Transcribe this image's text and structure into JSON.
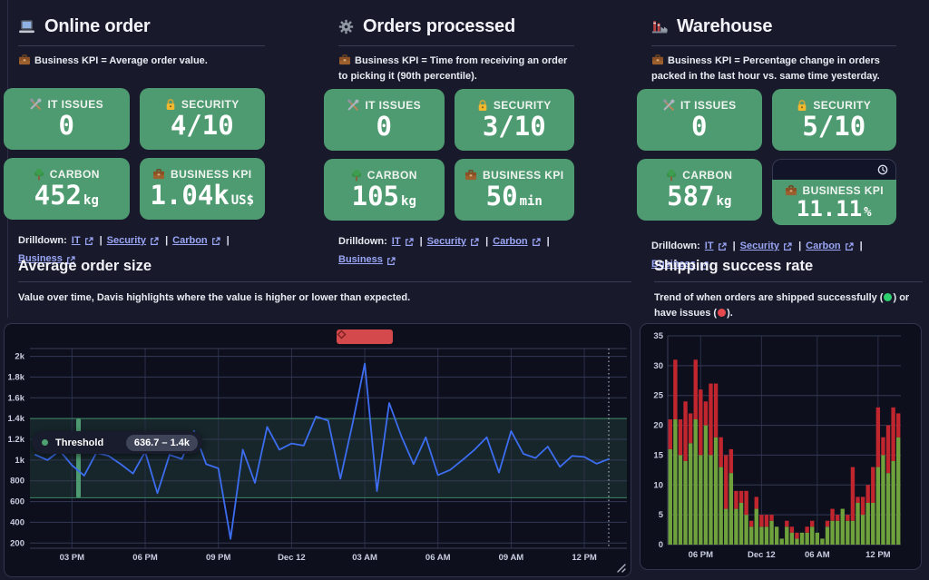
{
  "colors": {
    "background": "#181a2b",
    "tile_green": "#4f9b71",
    "line_blue": "#3d6df0",
    "bar_green": "#6fa23c",
    "bar_red": "#c1262f",
    "marker_red": "#d4494b",
    "link": "#9aa5f5",
    "status_green_dot": "#2ed06e",
    "status_red_dot": "#e5484d",
    "threshold_band": "rgba(74,160,116,0.16)",
    "threshold_edge": "#3e8764"
  },
  "sections": [
    {
      "id": "online-order",
      "icon": "laptop-icon",
      "title": "Online order",
      "note_icon": "briefcase-icon",
      "note": "Business KPI = Average order value.",
      "tiles": [
        {
          "icon": "tools-icon",
          "label": "IT ISSUES",
          "value": "0",
          "unit": ""
        },
        {
          "icon": "lock-icon",
          "label": "SECURITY",
          "value": "4/10",
          "unit": ""
        },
        {
          "icon": "tree-icon",
          "label": "CARBON",
          "value": "452",
          "unit": "kg"
        },
        {
          "icon": "briefcase-icon",
          "label": "BUSINESS KPI",
          "value": "1.04k",
          "unit": "US$"
        }
      ],
      "drilldown": {
        "label": "Drilldown:",
        "separator": "|",
        "links": [
          "IT",
          "Security",
          "Carbon",
          "Business"
        ]
      }
    },
    {
      "id": "orders-processed",
      "icon": "gear-icon",
      "title": "Orders processed",
      "note_icon": "briefcase-icon",
      "note": "Business KPI = Time from receiving an order to picking it (90th percentile).",
      "tiles": [
        {
          "icon": "tools-icon",
          "label": "IT ISSUES",
          "value": "0",
          "unit": ""
        },
        {
          "icon": "lock-icon",
          "label": "SECURITY",
          "value": "3/10",
          "unit": ""
        },
        {
          "icon": "tree-icon",
          "label": "CARBON",
          "value": "105",
          "unit": "kg"
        },
        {
          "icon": "briefcase-icon",
          "label": "BUSINESS KPI",
          "value": "50",
          "unit": "min"
        }
      ],
      "drilldown": {
        "label": "Drilldown:",
        "separator": "|",
        "links": [
          "IT",
          "Security",
          "Carbon",
          "Business"
        ]
      }
    },
    {
      "id": "warehouse",
      "icon": "factory-icon",
      "title": "Warehouse",
      "note_icon": "briefcase-icon",
      "note": "Business KPI = Percentage change in orders packed in the last hour vs. same time yesterday.",
      "tiles": [
        {
          "icon": "tools-icon",
          "label": "IT ISSUES",
          "value": "0",
          "unit": ""
        },
        {
          "icon": "lock-icon",
          "label": "SECURITY",
          "value": "5/10",
          "unit": ""
        },
        {
          "icon": "tree-icon",
          "label": "CARBON",
          "value": "587",
          "unit": "kg"
        },
        {
          "icon": "briefcase-icon",
          "label": "BUSINESS KPI",
          "value": "11.11",
          "unit": "%",
          "has_toolbar": true,
          "toolbar_icon": "clock-icon"
        }
      ],
      "drilldown": {
        "label": "Drilldown:",
        "separator": "|",
        "links": [
          "IT",
          "Security",
          "Carbon",
          "Business"
        ]
      }
    }
  ],
  "chart_data": [
    {
      "type": "line",
      "title": "Average order size",
      "subtitle": "Value over time, Davis highlights where the value is higher or lower than expected.",
      "series_color": "#3d6df0",
      "ylim": [
        150,
        2075
      ],
      "y_ticks": [
        {
          "label": "2k",
          "value": 2000
        },
        {
          "label": "1.8k",
          "value": 1800
        },
        {
          "label": "1.6k",
          "value": 1600
        },
        {
          "label": "1.4k",
          "value": 1400
        },
        {
          "label": "1.2k",
          "value": 1200
        },
        {
          "label": "1k",
          "value": 1000
        },
        {
          "label": "800",
          "value": 800
        },
        {
          "label": "600",
          "value": 600
        },
        {
          "label": "400",
          "value": 400
        },
        {
          "label": "200",
          "value": 200
        }
      ],
      "x_ticks": [
        {
          "label": "03 PM",
          "index": 3
        },
        {
          "label": "06 PM",
          "index": 9
        },
        {
          "label": "09 PM",
          "index": 15
        },
        {
          "label": "Dec 12",
          "index": 21
        },
        {
          "label": "03 AM",
          "index": 27
        },
        {
          "label": "06 AM",
          "index": 33
        },
        {
          "label": "09 AM",
          "index": 39
        },
        {
          "label": "12 PM",
          "index": 45
        }
      ],
      "x": [
        "1:30 PM",
        "2:00 PM",
        "2:30 PM",
        "3:00 PM",
        "3:30 PM",
        "4:00 PM",
        "4:30 PM",
        "5:00 PM",
        "5:30 PM",
        "6:00 PM",
        "6:30 PM",
        "7:00 PM",
        "7:30 PM",
        "8:00 PM",
        "8:30 PM",
        "9:00 PM",
        "9:30 PM",
        "10:00 PM",
        "10:30 PM",
        "11:00 PM",
        "11:30 PM",
        "12:00 AM",
        "12:30 AM",
        "1:00 AM",
        "1:30 AM",
        "2:00 AM",
        "2:30 AM",
        "3:00 AM",
        "3:30 AM",
        "4:00 AM",
        "4:30 AM",
        "5:00 AM",
        "5:30 AM",
        "6:00 AM",
        "6:30 AM",
        "7:00 AM",
        "7:30 AM",
        "8:00 AM",
        "8:30 AM",
        "9:00 AM",
        "9:30 AM",
        "10:00 AM",
        "10:30 AM",
        "11:00 AM",
        "11:30 AM",
        "12:00 PM",
        "12:30 PM",
        "1:00 PM"
      ],
      "values": [
        1050,
        1000,
        1090,
        950,
        850,
        1070,
        1040,
        960,
        870,
        1080,
        680,
        1050,
        1010,
        1280,
        960,
        920,
        240,
        1100,
        780,
        1320,
        1100,
        1160,
        1140,
        1420,
        1380,
        820,
        1350,
        1930,
        700,
        1550,
        1230,
        960,
        1220,
        855,
        905,
        1000,
        1100,
        1220,
        880,
        1280,
        1060,
        1020,
        1130,
        935,
        1040,
        1030,
        965,
        1010
      ],
      "threshold": {
        "name": "Threshold",
        "low": 636.7,
        "high": 1400,
        "range_label": "636.7 – 1.4k"
      },
      "annotation_marker": {
        "x_index": 27
      },
      "cursor_line_x_index": 47
    },
    {
      "type": "stacked-bar",
      "title": "Shipping success rate",
      "subtitle_parts": [
        "Trend of when orders are shipped successfully (",
        ") or have issues (",
        ")."
      ],
      "ylim": [
        0,
        35
      ],
      "y_ticks": [
        {
          "label": "0",
          "value": 0
        },
        {
          "label": "5",
          "value": 5
        },
        {
          "label": "10",
          "value": 10
        },
        {
          "label": "15",
          "value": 15
        },
        {
          "label": "20",
          "value": 20
        },
        {
          "label": "25",
          "value": 25
        },
        {
          "label": "30",
          "value": 30
        },
        {
          "label": "35",
          "value": 35
        }
      ],
      "x_ticks": [
        {
          "label": "06 PM",
          "index": 6
        },
        {
          "label": "Dec 12",
          "index": 18
        },
        {
          "label": "06 AM",
          "index": 29
        },
        {
          "label": "12 PM",
          "index": 41
        }
      ],
      "series": [
        {
          "name": "shipped successfully",
          "color": "#6fa23c",
          "values": [
            16,
            21,
            15,
            14,
            17,
            21,
            15,
            20,
            15,
            18,
            13,
            6,
            12,
            6,
            7,
            5,
            3,
            6,
            3,
            3,
            4,
            3,
            1,
            3,
            2,
            1,
            2,
            2,
            3,
            2,
            1,
            3,
            4,
            4,
            6,
            4,
            4,
            7,
            5,
            7,
            7,
            13,
            15,
            12,
            14,
            18
          ]
        },
        {
          "name": "have issues",
          "color": "#c1262f",
          "values": [
            5,
            10,
            6,
            10,
            5,
            10,
            11,
            4,
            12,
            9,
            5,
            9,
            4,
            3,
            2,
            4,
            1,
            2,
            2,
            2,
            1,
            0,
            0,
            1,
            1,
            1,
            0,
            1,
            1,
            0,
            0,
            1,
            2,
            1,
            0,
            1,
            9,
            1,
            3,
            3,
            6,
            10,
            3,
            8,
            9,
            4
          ]
        }
      ]
    }
  ]
}
